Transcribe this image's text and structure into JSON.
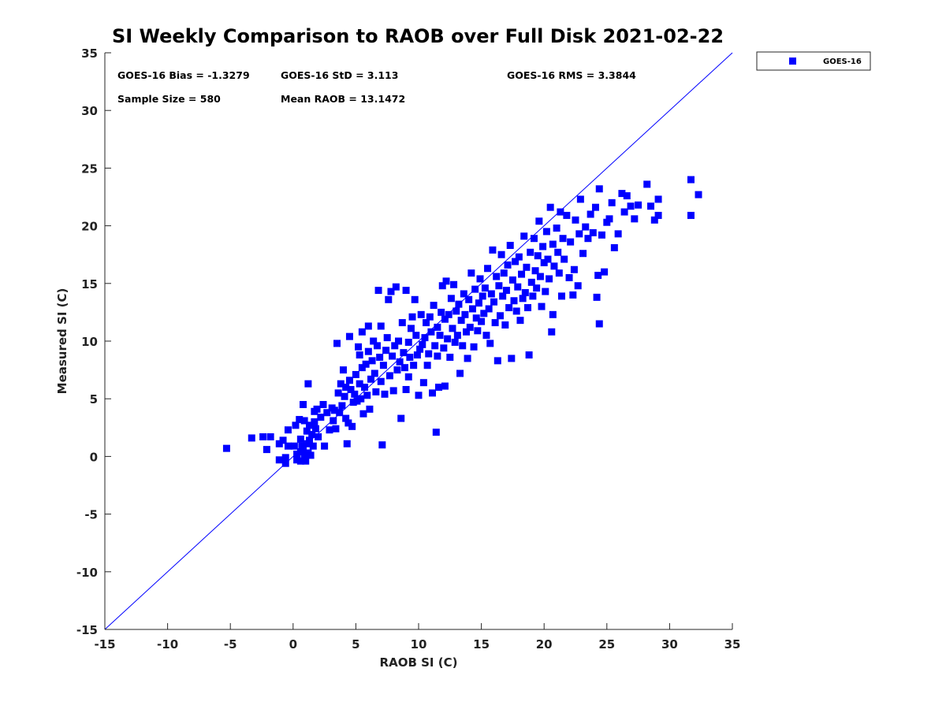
{
  "chart_data": {
    "type": "scatter",
    "title": "SI Weekly Comparison to RAOB over Full Disk 2021-02-22",
    "xlabel": "RAOB SI (C)",
    "ylabel": "Measured SI (C)",
    "xlim": [
      -15,
      35
    ],
    "ylim": [
      -15,
      35
    ],
    "xticks": [
      "-15",
      "-10",
      "-5",
      "0",
      "5",
      "10",
      "15",
      "20",
      "25",
      "30",
      "35"
    ],
    "yticks": [
      "-15",
      "-10",
      "-5",
      "0",
      "5",
      "10",
      "15",
      "20",
      "25",
      "30",
      "35"
    ],
    "grid": false,
    "legend_position": "outside-top-right",
    "stats": {
      "bias": "GOES-16 Bias = -1.3279",
      "std": "GOES-16 StD = 3.113",
      "rms": "GOES-16 RMS = 3.3844",
      "sample_size": "Sample Size = 580",
      "mean_raob": "Mean RAOB = 13.1472"
    },
    "reference_line": {
      "name": "1:1 line",
      "color": "#0000ff",
      "from": [
        -15,
        -15
      ],
      "to": [
        35,
        35
      ]
    },
    "series": [
      {
        "name": "GOES-16",
        "color": "#0000ff",
        "marker": "square",
        "points": [
          [
            -5.3,
            0.7
          ],
          [
            -3.3,
            1.6
          ],
          [
            -2.4,
            1.7
          ],
          [
            -2.1,
            0.6
          ],
          [
            -1.8,
            1.7
          ],
          [
            -1.1,
            1.1
          ],
          [
            -1.1,
            -0.3
          ],
          [
            -0.8,
            1.4
          ],
          [
            -0.6,
            -0.1
          ],
          [
            -0.6,
            -0.6
          ],
          [
            -0.4,
            0.9
          ],
          [
            -0.4,
            2.3
          ],
          [
            0.1,
            0.9
          ],
          [
            0.2,
            2.7
          ],
          [
            0.3,
            -0.3
          ],
          [
            0.3,
            0.2
          ],
          [
            0.5,
            3.2
          ],
          [
            0.6,
            1.5
          ],
          [
            0.6,
            0.4
          ],
          [
            0.6,
            -0.4
          ],
          [
            0.7,
            0.9
          ],
          [
            0.8,
            4.5
          ],
          [
            0.8,
            0.6
          ],
          [
            0.9,
            3.1
          ],
          [
            0.9,
            0.0
          ],
          [
            1.0,
            -0.4
          ],
          [
            1.1,
            2.2
          ],
          [
            1.1,
            1.1
          ],
          [
            1.2,
            0.3
          ],
          [
            1.2,
            6.3
          ],
          [
            1.3,
            1.4
          ],
          [
            1.3,
            2.7
          ],
          [
            1.4,
            0.1
          ],
          [
            1.5,
            1.9
          ],
          [
            1.6,
            0.9
          ],
          [
            1.7,
            3.0
          ],
          [
            1.7,
            3.9
          ],
          [
            1.8,
            2.4
          ],
          [
            1.9,
            4.1
          ],
          [
            2.0,
            1.7
          ],
          [
            2.2,
            3.4
          ],
          [
            2.4,
            4.5
          ],
          [
            2.5,
            0.9
          ],
          [
            2.7,
            3.8
          ],
          [
            2.9,
            2.3
          ],
          [
            3.1,
            4.2
          ],
          [
            3.2,
            3.1
          ],
          [
            3.3,
            4.0
          ],
          [
            3.4,
            2.4
          ],
          [
            3.5,
            9.8
          ],
          [
            3.6,
            5.5
          ],
          [
            3.7,
            3.8
          ],
          [
            3.8,
            6.3
          ],
          [
            3.9,
            4.4
          ],
          [
            4.0,
            7.5
          ],
          [
            4.1,
            5.2
          ],
          [
            4.2,
            6.0
          ],
          [
            4.2,
            3.3
          ],
          [
            4.3,
            1.1
          ],
          [
            4.4,
            2.9
          ],
          [
            4.5,
            6.6
          ],
          [
            4.5,
            10.4
          ],
          [
            4.6,
            5.8
          ],
          [
            4.7,
            2.6
          ],
          [
            4.8,
            4.7
          ],
          [
            4.9,
            5.4
          ],
          [
            5.0,
            7.1
          ],
          [
            5.1,
            4.8
          ],
          [
            5.2,
            9.5
          ],
          [
            5.3,
            6.3
          ],
          [
            5.3,
            8.8
          ],
          [
            5.4,
            5.0
          ],
          [
            5.5,
            7.7
          ],
          [
            5.5,
            10.8
          ],
          [
            5.6,
            3.7
          ],
          [
            5.7,
            6.0
          ],
          [
            5.8,
            8.0
          ],
          [
            5.9,
            5.3
          ],
          [
            6.0,
            11.3
          ],
          [
            6.0,
            9.1
          ],
          [
            6.1,
            4.1
          ],
          [
            6.2,
            6.7
          ],
          [
            6.3,
            8.3
          ],
          [
            6.4,
            10.0
          ],
          [
            6.5,
            7.2
          ],
          [
            6.6,
            5.6
          ],
          [
            6.7,
            9.6
          ],
          [
            6.8,
            14.4
          ],
          [
            6.9,
            8.6
          ],
          [
            7.0,
            6.5
          ],
          [
            7.0,
            11.3
          ],
          [
            7.1,
            1.0
          ],
          [
            7.2,
            7.9
          ],
          [
            7.3,
            5.4
          ],
          [
            7.4,
            9.2
          ],
          [
            7.5,
            10.3
          ],
          [
            7.6,
            13.6
          ],
          [
            7.7,
            7.0
          ],
          [
            7.8,
            14.3
          ],
          [
            7.9,
            8.7
          ],
          [
            8.0,
            5.7
          ],
          [
            8.1,
            9.6
          ],
          [
            8.2,
            14.7
          ],
          [
            8.3,
            7.5
          ],
          [
            8.4,
            10.0
          ],
          [
            8.5,
            8.2
          ],
          [
            8.6,
            3.3
          ],
          [
            8.7,
            11.6
          ],
          [
            8.8,
            9.0
          ],
          [
            8.9,
            7.7
          ],
          [
            9.0,
            14.4
          ],
          [
            9.0,
            5.8
          ],
          [
            9.2,
            6.9
          ],
          [
            9.2,
            9.9
          ],
          [
            9.3,
            8.6
          ],
          [
            9.4,
            11.1
          ],
          [
            9.5,
            12.1
          ],
          [
            9.6,
            7.9
          ],
          [
            9.7,
            13.6
          ],
          [
            9.8,
            10.5
          ],
          [
            9.9,
            8.8
          ],
          [
            10.0,
            5.3
          ],
          [
            10.1,
            9.3
          ],
          [
            10.2,
            12.3
          ],
          [
            10.3,
            9.7
          ],
          [
            10.4,
            6.4
          ],
          [
            10.5,
            10.3
          ],
          [
            10.6,
            11.6
          ],
          [
            10.7,
            7.9
          ],
          [
            10.8,
            8.9
          ],
          [
            10.9,
            12.1
          ],
          [
            11.0,
            10.8
          ],
          [
            11.1,
            5.5
          ],
          [
            11.2,
            13.1
          ],
          [
            11.3,
            9.6
          ],
          [
            11.4,
            2.1
          ],
          [
            11.5,
            11.2
          ],
          [
            11.5,
            8.7
          ],
          [
            11.6,
            6.0
          ],
          [
            11.7,
            10.5
          ],
          [
            11.8,
            12.5
          ],
          [
            11.9,
            14.8
          ],
          [
            12.0,
            9.4
          ],
          [
            12.1,
            11.9
          ],
          [
            12.1,
            6.1
          ],
          [
            12.2,
            15.2
          ],
          [
            12.3,
            10.2
          ],
          [
            12.4,
            12.3
          ],
          [
            12.5,
            8.6
          ],
          [
            12.6,
            13.7
          ],
          [
            12.7,
            11.1
          ],
          [
            12.8,
            14.9
          ],
          [
            12.9,
            9.9
          ],
          [
            13.0,
            12.6
          ],
          [
            13.1,
            10.5
          ],
          [
            13.2,
            13.2
          ],
          [
            13.3,
            7.2
          ],
          [
            13.4,
            11.8
          ],
          [
            13.5,
            9.6
          ],
          [
            13.6,
            14.1
          ],
          [
            13.7,
            12.3
          ],
          [
            13.8,
            10.8
          ],
          [
            13.9,
            8.5
          ],
          [
            14.0,
            13.6
          ],
          [
            14.1,
            11.2
          ],
          [
            14.2,
            15.9
          ],
          [
            14.3,
            12.8
          ],
          [
            14.4,
            9.5
          ],
          [
            14.5,
            14.5
          ],
          [
            14.6,
            12.0
          ],
          [
            14.7,
            10.9
          ],
          [
            14.8,
            13.3
          ],
          [
            14.9,
            15.4
          ],
          [
            15.0,
            11.7
          ],
          [
            15.1,
            13.9
          ],
          [
            15.2,
            12.4
          ],
          [
            15.3,
            14.6
          ],
          [
            15.4,
            10.5
          ],
          [
            15.5,
            16.3
          ],
          [
            15.6,
            12.8
          ],
          [
            15.7,
            9.8
          ],
          [
            15.8,
            14.1
          ],
          [
            15.9,
            17.9
          ],
          [
            16.0,
            13.4
          ],
          [
            16.1,
            11.6
          ],
          [
            16.2,
            15.6
          ],
          [
            16.3,
            8.3
          ],
          [
            16.4,
            14.8
          ],
          [
            16.5,
            12.2
          ],
          [
            16.6,
            17.5
          ],
          [
            16.7,
            13.9
          ],
          [
            16.8,
            15.9
          ],
          [
            16.9,
            11.4
          ],
          [
            17.0,
            14.4
          ],
          [
            17.1,
            16.6
          ],
          [
            17.2,
            12.9
          ],
          [
            17.3,
            18.3
          ],
          [
            17.4,
            8.5
          ],
          [
            17.5,
            15.3
          ],
          [
            17.6,
            13.5
          ],
          [
            17.7,
            16.9
          ],
          [
            17.8,
            12.6
          ],
          [
            17.9,
            14.7
          ],
          [
            18.0,
            17.3
          ],
          [
            18.1,
            11.8
          ],
          [
            18.2,
            15.8
          ],
          [
            18.3,
            13.7
          ],
          [
            18.4,
            19.1
          ],
          [
            18.5,
            14.2
          ],
          [
            18.6,
            16.4
          ],
          [
            18.7,
            12.9
          ],
          [
            18.8,
            8.8
          ],
          [
            18.9,
            17.7
          ],
          [
            19.0,
            15.1
          ],
          [
            19.1,
            13.9
          ],
          [
            19.2,
            18.9
          ],
          [
            19.3,
            16.1
          ],
          [
            19.4,
            14.6
          ],
          [
            19.5,
            17.4
          ],
          [
            19.6,
            20.4
          ],
          [
            19.7,
            15.6
          ],
          [
            19.8,
            13.0
          ],
          [
            19.9,
            18.2
          ],
          [
            20.0,
            16.8
          ],
          [
            20.1,
            14.3
          ],
          [
            20.2,
            19.5
          ],
          [
            20.3,
            17.1
          ],
          [
            20.4,
            15.4
          ],
          [
            20.5,
            21.6
          ],
          [
            20.6,
            10.8
          ],
          [
            20.7,
            18.4
          ],
          [
            20.7,
            12.3
          ],
          [
            20.8,
            16.5
          ],
          [
            21.0,
            19.8
          ],
          [
            21.1,
            17.7
          ],
          [
            21.2,
            15.9
          ],
          [
            21.3,
            21.2
          ],
          [
            21.4,
            13.9
          ],
          [
            21.5,
            18.9
          ],
          [
            21.6,
            17.1
          ],
          [
            21.8,
            20.9
          ],
          [
            22.0,
            15.5
          ],
          [
            22.1,
            18.6
          ],
          [
            22.3,
            14.0
          ],
          [
            22.4,
            16.2
          ],
          [
            22.5,
            20.5
          ],
          [
            22.7,
            14.8
          ],
          [
            22.8,
            19.3
          ],
          [
            22.9,
            22.3
          ],
          [
            23.1,
            17.6
          ],
          [
            23.3,
            19.9
          ],
          [
            23.5,
            18.9
          ],
          [
            23.7,
            21.0
          ],
          [
            23.9,
            19.4
          ],
          [
            24.1,
            21.6
          ],
          [
            24.2,
            13.8
          ],
          [
            24.3,
            15.7
          ],
          [
            24.4,
            11.5
          ],
          [
            24.4,
            23.2
          ],
          [
            24.6,
            19.2
          ],
          [
            24.8,
            16.0
          ],
          [
            25.0,
            20.3
          ],
          [
            25.2,
            20.6
          ],
          [
            25.4,
            22.0
          ],
          [
            25.6,
            18.1
          ],
          [
            25.9,
            19.3
          ],
          [
            26.2,
            22.8
          ],
          [
            26.4,
            21.2
          ],
          [
            26.6,
            22.6
          ],
          [
            26.9,
            21.7
          ],
          [
            27.2,
            20.6
          ],
          [
            27.5,
            21.8
          ],
          [
            28.2,
            23.6
          ],
          [
            28.5,
            21.7
          ],
          [
            28.8,
            20.5
          ],
          [
            29.1,
            20.9
          ],
          [
            29.1,
            22.3
          ],
          [
            31.7,
            24.0
          ],
          [
            31.7,
            20.9
          ],
          [
            32.3,
            22.7
          ]
        ]
      }
    ]
  }
}
